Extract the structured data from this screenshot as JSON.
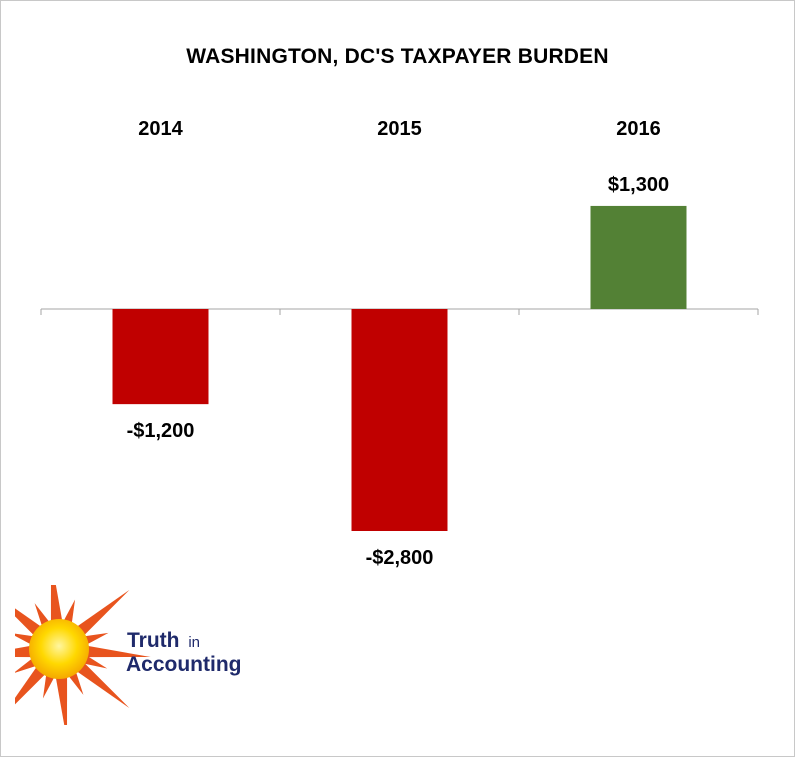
{
  "chart_data": {
    "type": "bar",
    "title": "WASHINGTON, DC'S TAXPAYER BURDEN",
    "categories": [
      "2014",
      "2015",
      "2016"
    ],
    "values": [
      -1200,
      -2800,
      1300
    ],
    "data_labels": [
      "-$1,200",
      "-$2,800",
      "$1,300"
    ],
    "bar_colors": [
      "#c00000",
      "#c00000",
      "#538135"
    ],
    "category_label_position": "top",
    "gridlines": false,
    "legend": "none"
  },
  "logo": {
    "line1_main": "Truth",
    "line1_small": "in",
    "line2": "Accounting",
    "text_color": "#1f2a6b",
    "sun_color": "#ffd200",
    "ray_color": "#e8541e"
  }
}
